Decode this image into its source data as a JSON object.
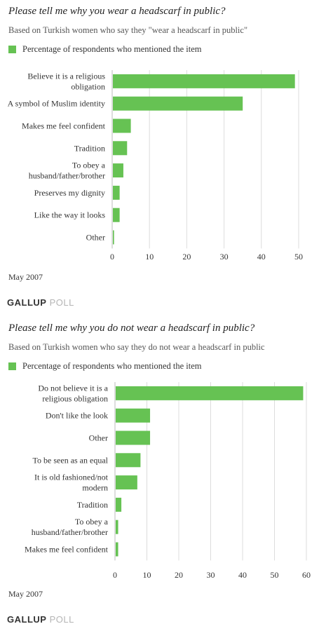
{
  "chart_data": [
    {
      "type": "bar",
      "orientation": "horizontal",
      "title": "Please tell me why you wear a headscarf in public?",
      "subtitle": "Based on Turkish women who say they \"wear a headscarf in public\"",
      "categories": [
        "Believe it is a religious obligation",
        "A symbol of Muslim identity",
        "Makes me feel confident",
        "Tradition",
        "To obey a husband/father/brother",
        "Preserves my dignity",
        "Like the way it looks",
        "Other"
      ],
      "series": [
        {
          "name": "Percentage of respondents who mentioned the item",
          "values": [
            49,
            35,
            5,
            4,
            3,
            2,
            2,
            0.5
          ]
        }
      ],
      "xlim": [
        0,
        50
      ],
      "xticks": [
        0,
        10,
        20,
        30,
        40,
        50
      ],
      "grid": true,
      "legend": "top-left",
      "color": "#66c253"
    },
    {
      "type": "bar",
      "orientation": "horizontal",
      "title": "Please tell me why you do not wear a headscarf in public?",
      "subtitle": "Based on Turkish women who say they do not wear a headscarf in public",
      "categories": [
        "Do not believe it is a religious obligation",
        "Don't like the look",
        "Other",
        "To be seen as an equal",
        "It is old fashioned/not modern",
        "Tradition",
        "To obey a husband/father/brother",
        "Makes me feel confident"
      ],
      "series": [
        {
          "name": "Percentage of respondents who mentioned the item",
          "values": [
            59,
            11,
            11,
            8,
            7,
            2,
            1,
            1
          ]
        }
      ],
      "xlim": [
        0,
        60
      ],
      "xticks": [
        0,
        10,
        20,
        30,
        40,
        50,
        60
      ],
      "grid": true,
      "legend": "top-left",
      "color": "#66c253"
    }
  ],
  "footer": {
    "chart1_date": "May 2007",
    "chart2_date": "May 2007",
    "logo_strong": "GALLUP",
    "logo_light": "POLL"
  }
}
